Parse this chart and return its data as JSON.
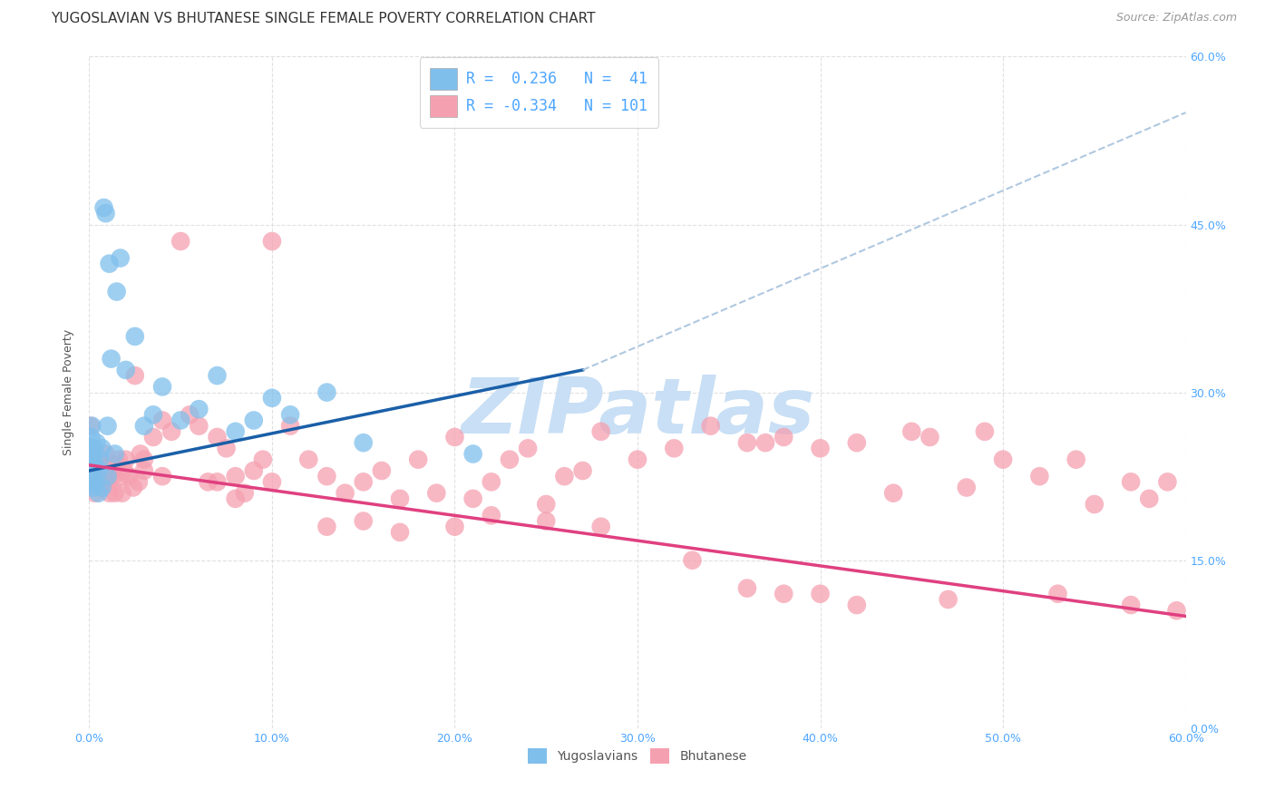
{
  "title": "YUGOSLAVIAN VS BHUTANESE SINGLE FEMALE POVERTY CORRELATION CHART",
  "source_text": "Source: ZipAtlas.com",
  "ylabel": "Single Female Poverty",
  "xlabel_vals": [
    0.0,
    10.0,
    20.0,
    30.0,
    40.0,
    50.0,
    60.0
  ],
  "ytick_vals": [
    0.0,
    15.0,
    30.0,
    45.0,
    60.0
  ],
  "xmin": 0.0,
  "xmax": 60.0,
  "ymin": 0.0,
  "ymax": 60.0,
  "legend_blue_R": "0.236",
  "legend_blue_N": "41",
  "legend_pink_R": "-0.334",
  "legend_pink_N": "101",
  "blue_scatter_color": "#7fbfec",
  "pink_scatter_color": "#f5a0b0",
  "blue_line_color": "#1a5fa8",
  "pink_line_color": "#e04080",
  "dashed_line_color": "#b0c8e0",
  "axis_tick_color": "#4da6ff",
  "grid_color": "#e0e0e0",
  "background_color": "#ffffff",
  "watermark_color": "#c8dff5",
  "title_fontsize": 11,
  "axis_label_fontsize": 9,
  "tick_fontsize": 9,
  "legend_fontsize": 12,
  "yug_x": [
    0.05,
    0.1,
    0.15,
    0.2,
    0.25,
    0.3,
    0.4,
    0.5,
    0.6,
    0.7,
    0.8,
    0.9,
    1.0,
    1.1,
    1.2,
    1.4,
    1.5,
    1.7,
    2.0,
    2.5,
    3.0,
    3.5,
    4.0,
    5.0,
    6.0,
    7.0,
    8.0,
    9.0,
    10.0,
    11.0,
    13.0,
    15.0,
    0.05,
    0.1,
    0.15,
    0.2,
    0.3,
    0.5,
    0.7,
    1.0,
    21.0
  ],
  "yug_y": [
    24.5,
    26.0,
    27.0,
    24.0,
    25.0,
    23.5,
    25.5,
    23.0,
    24.0,
    25.0,
    46.5,
    46.0,
    27.0,
    41.5,
    33.0,
    24.5,
    39.0,
    42.0,
    32.0,
    35.0,
    27.0,
    28.0,
    30.5,
    27.5,
    28.5,
    31.5,
    26.5,
    27.5,
    29.5,
    28.0,
    30.0,
    25.5,
    23.0,
    22.5,
    22.0,
    21.5,
    22.0,
    21.0,
    21.5,
    22.5,
    24.5
  ],
  "bhu_x": [
    0.05,
    0.1,
    0.15,
    0.2,
    0.3,
    0.4,
    0.5,
    0.6,
    0.7,
    0.8,
    0.9,
    1.0,
    1.1,
    1.2,
    1.3,
    1.4,
    1.5,
    1.6,
    1.7,
    1.8,
    1.9,
    2.0,
    2.2,
    2.4,
    2.5,
    2.7,
    2.8,
    3.0,
    3.5,
    4.0,
    4.5,
    5.0,
    5.5,
    6.0,
    6.5,
    7.0,
    7.5,
    8.0,
    8.5,
    9.0,
    9.5,
    10.0,
    11.0,
    12.0,
    13.0,
    14.0,
    15.0,
    16.0,
    17.0,
    18.0,
    19.0,
    20.0,
    21.0,
    22.0,
    23.0,
    24.0,
    25.0,
    26.0,
    27.0,
    28.0,
    30.0,
    32.0,
    34.0,
    36.0,
    37.0,
    38.0,
    40.0,
    42.0,
    44.0,
    45.0,
    46.0,
    48.0,
    49.0,
    50.0,
    52.0,
    54.0,
    55.0,
    57.0,
    58.0,
    59.0,
    3.0,
    4.0,
    7.0,
    8.0,
    10.0,
    13.0,
    15.0,
    17.0,
    20.0,
    22.0,
    25.0,
    28.0,
    33.0,
    36.0,
    38.0,
    40.0,
    42.0,
    47.0,
    53.0,
    57.0,
    59.5
  ],
  "bhu_y": [
    27.0,
    25.0,
    22.0,
    23.0,
    21.0,
    22.5,
    24.0,
    23.5,
    21.5,
    22.0,
    24.5,
    22.0,
    21.0,
    23.0,
    22.5,
    21.0,
    23.5,
    24.0,
    22.5,
    21.0,
    23.0,
    24.0,
    22.5,
    21.5,
    31.5,
    22.0,
    24.5,
    23.0,
    26.0,
    27.5,
    26.5,
    43.5,
    28.0,
    27.0,
    22.0,
    26.0,
    25.0,
    22.5,
    21.0,
    23.0,
    24.0,
    43.5,
    27.0,
    24.0,
    22.5,
    21.0,
    22.0,
    23.0,
    20.5,
    24.0,
    21.0,
    26.0,
    20.5,
    22.0,
    24.0,
    25.0,
    20.0,
    22.5,
    23.0,
    26.5,
    24.0,
    25.0,
    27.0,
    25.5,
    25.5,
    26.0,
    25.0,
    25.5,
    21.0,
    26.5,
    26.0,
    21.5,
    26.5,
    24.0,
    22.5,
    24.0,
    20.0,
    22.0,
    20.5,
    22.0,
    24.0,
    22.5,
    22.0,
    20.5,
    22.0,
    18.0,
    18.5,
    17.5,
    18.0,
    19.0,
    18.5,
    18.0,
    15.0,
    12.5,
    12.0,
    12.0,
    11.0,
    11.5,
    12.0,
    11.0,
    10.5
  ],
  "blue_line_x0": 0.0,
  "blue_line_y0": 23.0,
  "blue_line_x1": 27.0,
  "blue_line_y1": 32.0,
  "blue_dash_x0": 27.0,
  "blue_dash_y0": 32.0,
  "blue_dash_x1": 60.0,
  "blue_dash_y1": 55.0,
  "pink_line_x0": 0.0,
  "pink_line_y0": 23.5,
  "pink_line_x1": 60.0,
  "pink_line_y1": 10.0
}
